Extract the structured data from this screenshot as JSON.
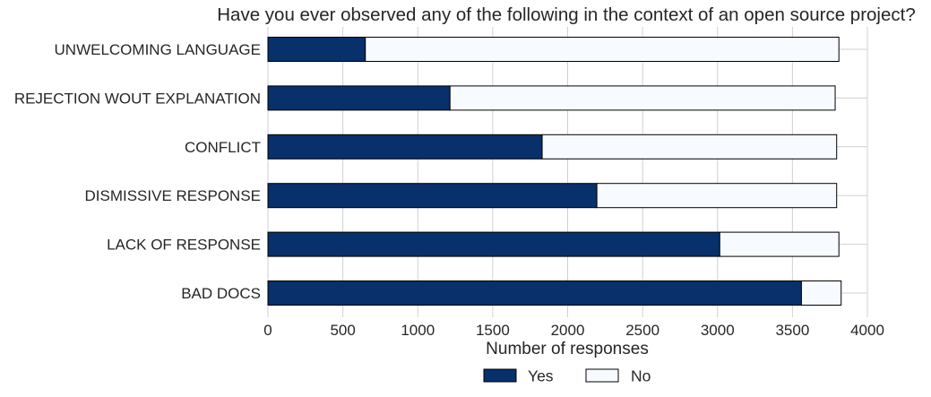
{
  "chart_data": {
    "type": "bar",
    "orientation": "horizontal",
    "stacked": true,
    "title": "Have you ever observed any of the following in the context of an open source project?",
    "xlabel": "Number of responses",
    "ylabel": "",
    "xlim": [
      0,
      4000
    ],
    "xticks": [
      "0",
      "500",
      "1000",
      "1500",
      "2000",
      "2500",
      "3000",
      "3500",
      "4000"
    ],
    "xtick_values": [
      0,
      500,
      1000,
      1500,
      2000,
      2500,
      3000,
      3500,
      4000
    ],
    "categories": [
      "UNWELCOMING LANGUAGE",
      "REJECTION WOUT EXPLANATION",
      "CONFLICT",
      "DISMISSIVE RESPONSE",
      "LACK OF RESPONSE",
      "BAD DOCS"
    ],
    "series": [
      {
        "name": "Yes",
        "color": "#08306b",
        "values": [
          650,
          1215,
          1830,
          2195,
          3015,
          3560
        ]
      },
      {
        "name": "No",
        "color": "#f7fbff",
        "values": [
          3160,
          2570,
          1965,
          1600,
          795,
          265
        ]
      }
    ],
    "grid": true,
    "legend_position": "bottom-center",
    "bar_edge_color": "#000000"
  }
}
